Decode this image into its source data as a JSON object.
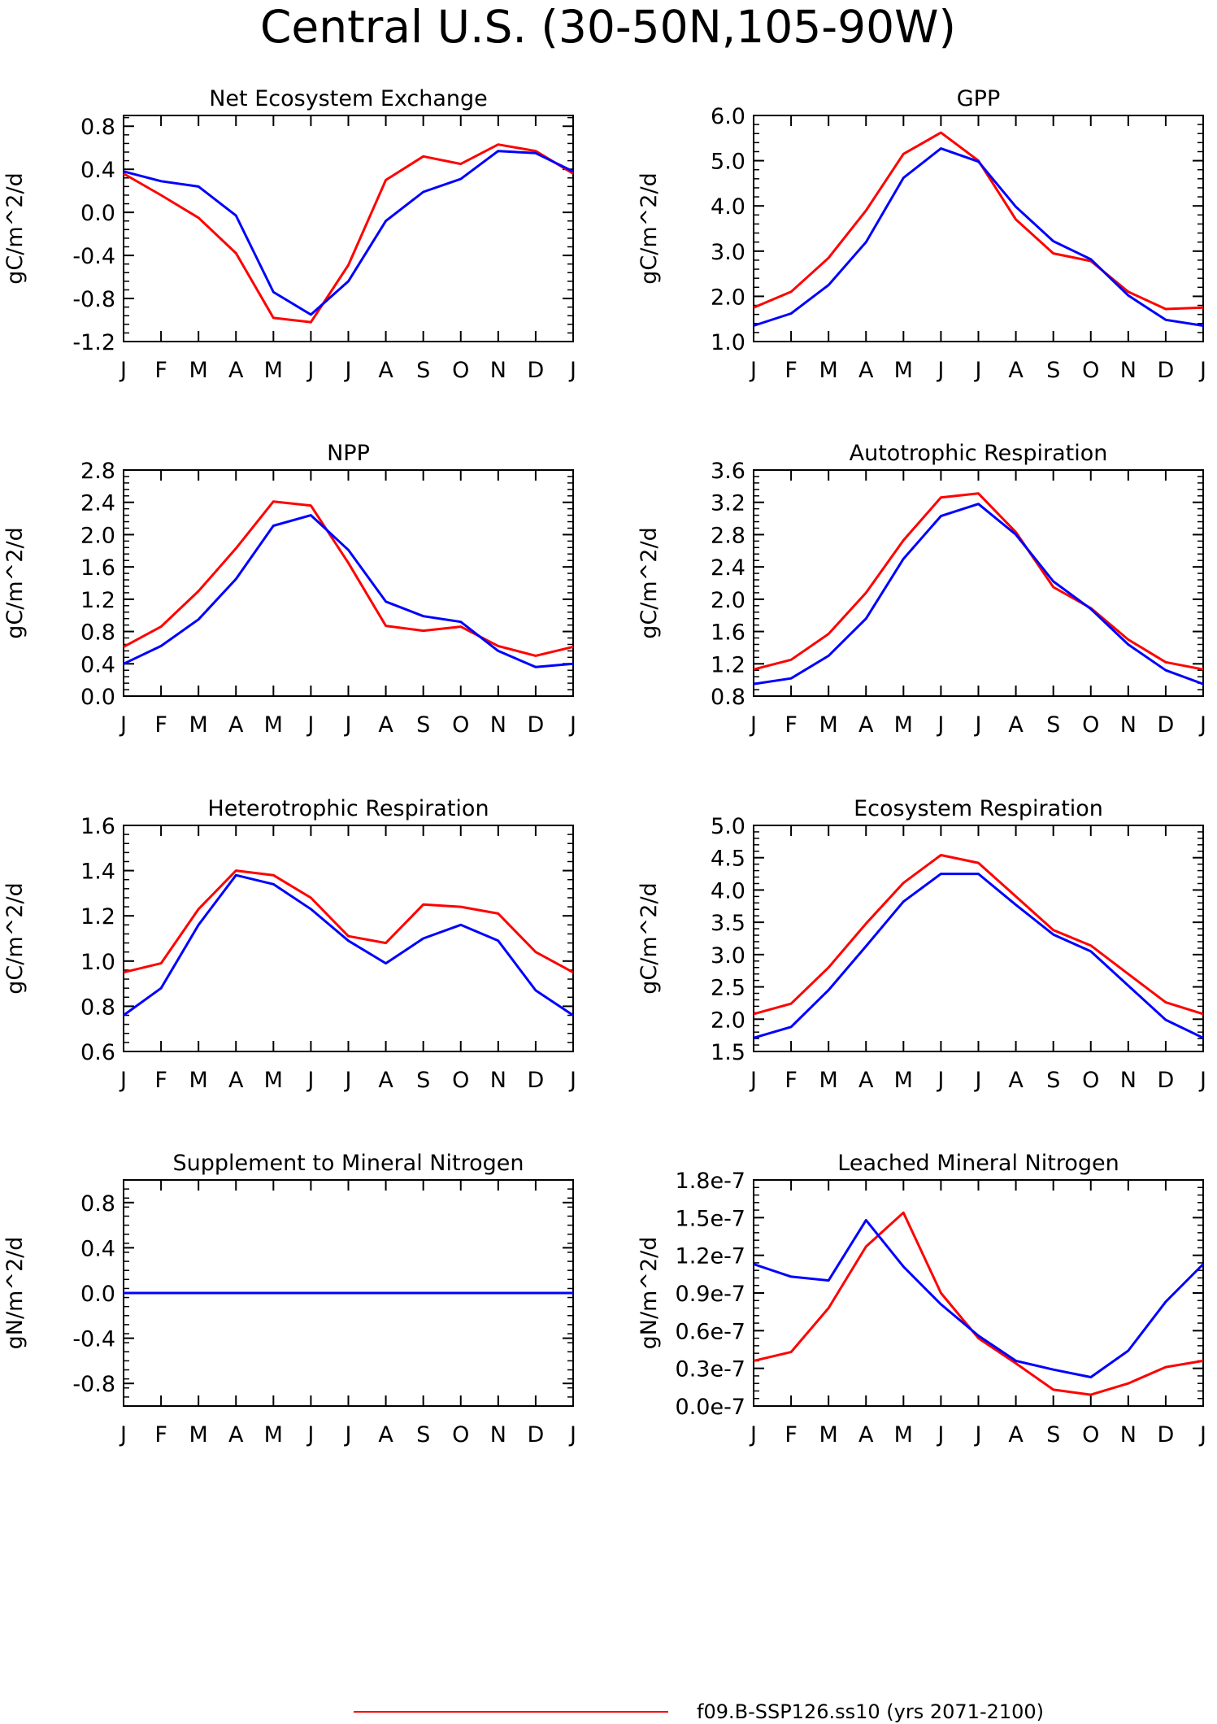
{
  "title": "Central U.S. (30-50N,105-90W)",
  "colors": {
    "case1": "#ff0000",
    "case2": "#0000ff",
    "axis": "#000000"
  },
  "legend": [
    "f09.B-SSP126.ss10 (yrs 2071-2100)"
  ],
  "chart_data": [
    {
      "type": "line",
      "title": "Net Ecosystem Exchange",
      "ylabel": "gC/m^2/d",
      "categories": [
        "J",
        "F",
        "M",
        "A",
        "M",
        "J",
        "J",
        "A",
        "S",
        "O",
        "N",
        "D",
        "J"
      ],
      "ylim": [
        -1.2,
        0.9
      ],
      "yticks": [
        -1.2,
        -0.8,
        -0.4,
        0.0,
        0.4,
        0.8
      ],
      "yticklabels": [
        "-1.2",
        "-0.8",
        "-0.4",
        "0.0",
        "0.4",
        "0.8"
      ],
      "series": [
        {
          "name": "f09.B-SSP126.ss10 (yrs 2071-2100)",
          "color": "#ff0000",
          "values": [
            0.36,
            0.16,
            -0.05,
            -0.38,
            -0.98,
            -1.02,
            -0.49,
            0.3,
            0.52,
            0.45,
            0.63,
            0.57,
            0.36
          ]
        },
        {
          "color": "#0000ff",
          "values": [
            0.38,
            0.29,
            0.24,
            -0.03,
            -0.74,
            -0.95,
            -0.64,
            -0.08,
            0.19,
            0.31,
            0.57,
            0.55,
            0.38
          ]
        }
      ]
    },
    {
      "type": "line",
      "title": "GPP",
      "ylabel": "gC/m^2/d",
      "categories": [
        "J",
        "F",
        "M",
        "A",
        "M",
        "J",
        "J",
        "A",
        "S",
        "O",
        "N",
        "D",
        "J"
      ],
      "ylim": [
        1.0,
        6.0
      ],
      "yticks": [
        1.0,
        2.0,
        3.0,
        4.0,
        5.0,
        6.0
      ],
      "yticklabels": [
        "1.0",
        "2.0",
        "3.0",
        "4.0",
        "5.0",
        "6.0"
      ],
      "series": [
        {
          "name": "f09.B-SSP126.ss10 (yrs 2071-2100)",
          "color": "#ff0000",
          "values": [
            1.75,
            2.1,
            2.85,
            3.9,
            5.15,
            5.62,
            5.0,
            3.7,
            2.95,
            2.78,
            2.1,
            1.72,
            1.75
          ]
        },
        {
          "color": "#0000ff",
          "values": [
            1.35,
            1.62,
            2.25,
            3.2,
            4.62,
            5.27,
            4.98,
            3.98,
            3.22,
            2.82,
            2.02,
            1.48,
            1.35
          ]
        }
      ]
    },
    {
      "type": "line",
      "title": "NPP",
      "ylabel": "gC/m^2/d",
      "categories": [
        "J",
        "F",
        "M",
        "A",
        "M",
        "J",
        "J",
        "A",
        "S",
        "O",
        "N",
        "D",
        "J"
      ],
      "ylim": [
        0.0,
        2.8
      ],
      "yticks": [
        0.0,
        0.4,
        0.8,
        1.2,
        1.6,
        2.0,
        2.4,
        2.8
      ],
      "yticklabels": [
        "0.0",
        "0.4",
        "0.8",
        "1.2",
        "1.6",
        "2.0",
        "2.4",
        "2.8"
      ],
      "series": [
        {
          "name": "f09.B-SSP126.ss10 (yrs 2071-2100)",
          "color": "#ff0000",
          "values": [
            0.61,
            0.86,
            1.3,
            1.83,
            2.41,
            2.36,
            1.65,
            0.87,
            0.81,
            0.86,
            0.62,
            0.5,
            0.61
          ]
        },
        {
          "color": "#0000ff",
          "values": [
            0.4,
            0.62,
            0.95,
            1.45,
            2.11,
            2.24,
            1.81,
            1.17,
            0.99,
            0.92,
            0.56,
            0.36,
            0.4
          ]
        }
      ]
    },
    {
      "type": "line",
      "title": "Autotrophic Respiration",
      "ylabel": "gC/m^2/d",
      "categories": [
        "J",
        "F",
        "M",
        "A",
        "M",
        "J",
        "J",
        "A",
        "S",
        "O",
        "N",
        "D",
        "J"
      ],
      "ylim": [
        0.8,
        3.6
      ],
      "yticks": [
        0.8,
        1.2,
        1.6,
        2.0,
        2.4,
        2.8,
        3.2,
        3.6
      ],
      "yticklabels": [
        "0.8",
        "1.2",
        "1.6",
        "2.0",
        "2.4",
        "2.8",
        "3.2",
        "3.6"
      ],
      "series": [
        {
          "name": "f09.B-SSP126.ss10 (yrs 2071-2100)",
          "color": "#ff0000",
          "values": [
            1.13,
            1.25,
            1.57,
            2.08,
            2.73,
            3.26,
            3.31,
            2.83,
            2.15,
            1.89,
            1.5,
            1.22,
            1.13
          ]
        },
        {
          "color": "#0000ff",
          "values": [
            0.95,
            1.02,
            1.3,
            1.76,
            2.5,
            3.03,
            3.18,
            2.8,
            2.22,
            1.88,
            1.44,
            1.12,
            0.95
          ]
        }
      ]
    },
    {
      "type": "line",
      "title": "Heterotrophic Respiration",
      "ylabel": "gC/m^2/d",
      "categories": [
        "J",
        "F",
        "M",
        "A",
        "M",
        "J",
        "J",
        "A",
        "S",
        "O",
        "N",
        "D",
        "J"
      ],
      "ylim": [
        0.6,
        1.6
      ],
      "yticks": [
        0.6,
        0.8,
        1.0,
        1.2,
        1.4,
        1.6
      ],
      "yticklabels": [
        "0.6",
        "0.8",
        "1.0",
        "1.2",
        "1.4",
        "1.6"
      ],
      "series": [
        {
          "name": "f09.B-SSP126.ss10 (yrs 2071-2100)",
          "color": "#ff0000",
          "values": [
            0.95,
            0.99,
            1.23,
            1.4,
            1.38,
            1.28,
            1.11,
            1.08,
            1.25,
            1.24,
            1.21,
            1.04,
            0.95
          ]
        },
        {
          "color": "#0000ff",
          "values": [
            0.76,
            0.88,
            1.16,
            1.38,
            1.34,
            1.23,
            1.09,
            0.99,
            1.1,
            1.16,
            1.09,
            0.87,
            0.76
          ]
        }
      ]
    },
    {
      "type": "line",
      "title": "Ecosystem Respiration",
      "ylabel": "gC/m^2/d",
      "categories": [
        "J",
        "F",
        "M",
        "A",
        "M",
        "J",
        "J",
        "A",
        "S",
        "O",
        "N",
        "D",
        "J"
      ],
      "ylim": [
        1.5,
        5.0
      ],
      "yticks": [
        1.5,
        2.0,
        2.5,
        3.0,
        3.5,
        4.0,
        4.5,
        5.0
      ],
      "yticklabels": [
        "1.5",
        "2.0",
        "2.5",
        "3.0",
        "3.5",
        "4.0",
        "4.5",
        "5.0"
      ],
      "series": [
        {
          "name": "f09.B-SSP126.ss10 (yrs 2071-2100)",
          "color": "#ff0000",
          "values": [
            2.08,
            2.24,
            2.8,
            3.48,
            4.11,
            4.54,
            4.42,
            3.9,
            3.38,
            3.14,
            2.7,
            2.26,
            2.08
          ]
        },
        {
          "color": "#0000ff",
          "values": [
            1.71,
            1.88,
            2.45,
            3.13,
            3.82,
            4.25,
            4.25,
            3.77,
            3.31,
            3.05,
            2.52,
            1.99,
            1.71
          ]
        }
      ]
    },
    {
      "type": "line",
      "title": "Supplement to Mineral Nitrogen",
      "ylabel": "gN/m^2/d",
      "categories": [
        "J",
        "F",
        "M",
        "A",
        "M",
        "J",
        "J",
        "A",
        "S",
        "O",
        "N",
        "D",
        "J"
      ],
      "ylim": [
        -1.0,
        1.0
      ],
      "yticks": [
        -0.8,
        -0.4,
        0.0,
        0.4,
        0.8
      ],
      "yticklabels": [
        "-0.8",
        "-0.4",
        "0.0",
        "0.4",
        "0.8"
      ],
      "series": [
        {
          "name": "f09.B-SSP126.ss10 (yrs 2071-2100)",
          "color": "#ff0000",
          "values": [
            0,
            0,
            0,
            0,
            0,
            0,
            0,
            0,
            0,
            0,
            0,
            0,
            0
          ]
        },
        {
          "color": "#0000ff",
          "values": [
            0,
            0,
            0,
            0,
            0,
            0,
            0,
            0,
            0,
            0,
            0,
            0,
            0
          ]
        }
      ]
    },
    {
      "type": "line",
      "title": "Leached Mineral Nitrogen",
      "ylabel": "gN/m^2/d",
      "categories": [
        "J",
        "F",
        "M",
        "A",
        "M",
        "J",
        "J",
        "A",
        "S",
        "O",
        "N",
        "D",
        "J"
      ],
      "ylim": [
        0.0,
        1.8e-07
      ],
      "yticks": [
        0.0,
        3e-08,
        6e-08,
        9e-08,
        1.2e-07,
        1.5e-07,
        1.8e-07
      ],
      "yticklabels": [
        "0.0e-7",
        "0.3e-7",
        "0.6e-7",
        "0.9e-7",
        "1.2e-7",
        "1.5e-7",
        "1.8e-7"
      ],
      "series": [
        {
          "name": "f09.B-SSP126.ss10 (yrs 2071-2100)",
          "color": "#ff0000",
          "values": [
            3.6e-08,
            4.3e-08,
            7.8e-08,
            1.27e-07,
            1.54e-07,
            9e-08,
            5.4e-08,
            3.4e-08,
            1.3e-08,
            9e-09,
            1.8e-08,
            3.1e-08,
            3.6e-08
          ]
        },
        {
          "color": "#0000ff",
          "values": [
            1.13e-07,
            1.03e-07,
            1e-07,
            1.48e-07,
            1.11e-07,
            8.1e-08,
            5.6e-08,
            3.6e-08,
            2.9e-08,
            2.3e-08,
            4.4e-08,
            8.3e-08,
            1.13e-07
          ]
        }
      ]
    }
  ]
}
